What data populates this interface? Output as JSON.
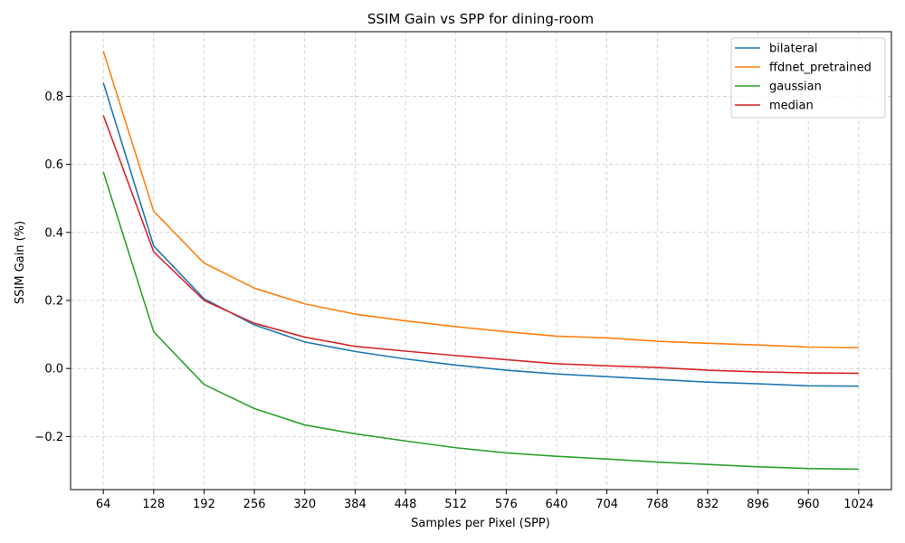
{
  "chart_data": {
    "type": "line",
    "title": "SSIM Gain vs SPP for dining-room",
    "xlabel": "Samples per Pixel (SPP)",
    "ylabel": "SSIM Gain (%)",
    "x": [
      64,
      128,
      192,
      256,
      320,
      384,
      448,
      512,
      576,
      640,
      704,
      768,
      832,
      896,
      960,
      1024
    ],
    "x_tick_labels": [
      "64",
      "128",
      "192",
      "256",
      "320",
      "384",
      "448",
      "512",
      "576",
      "640",
      "704",
      "768",
      "832",
      "896",
      "960",
      "1024"
    ],
    "y_ticks": [
      -0.2,
      0.0,
      0.2,
      0.4,
      0.6,
      0.8
    ],
    "y_tick_labels": [
      "−0.2",
      "0.0",
      "0.2",
      "0.4",
      "0.6",
      "0.8"
    ],
    "xlim": [
      22.4,
      1065.6
    ],
    "ylim": [
      -0.356,
      0.99
    ],
    "grid": true,
    "legend_position": "top-right",
    "series": [
      {
        "name": "bilateral",
        "color": "#1f77b4",
        "values": [
          0.84,
          0.36,
          0.205,
          0.128,
          0.078,
          0.05,
          0.028,
          0.01,
          -0.005,
          -0.016,
          -0.024,
          -0.032,
          -0.04,
          -0.045,
          -0.051,
          -0.052
        ]
      },
      {
        "name": "ffdnet_pretrained",
        "color": "#ff7f0e",
        "values": [
          0.933,
          0.462,
          0.31,
          0.236,
          0.19,
          0.16,
          0.14,
          0.123,
          0.108,
          0.095,
          0.09,
          0.08,
          0.074,
          0.069,
          0.063,
          0.061
        ]
      },
      {
        "name": "gaussian",
        "color": "#2ca02c",
        "values": [
          0.578,
          0.108,
          -0.047,
          -0.118,
          -0.166,
          -0.192,
          -0.213,
          -0.233,
          -0.248,
          -0.258,
          -0.266,
          -0.275,
          -0.282,
          -0.289,
          -0.294,
          -0.296
        ]
      },
      {
        "name": "median",
        "color": "#d62728",
        "values": [
          0.744,
          0.343,
          0.2,
          0.133,
          0.092,
          0.065,
          0.051,
          0.038,
          0.026,
          0.014,
          0.008,
          0.003,
          -0.005,
          -0.01,
          -0.013,
          -0.014
        ]
      }
    ]
  }
}
